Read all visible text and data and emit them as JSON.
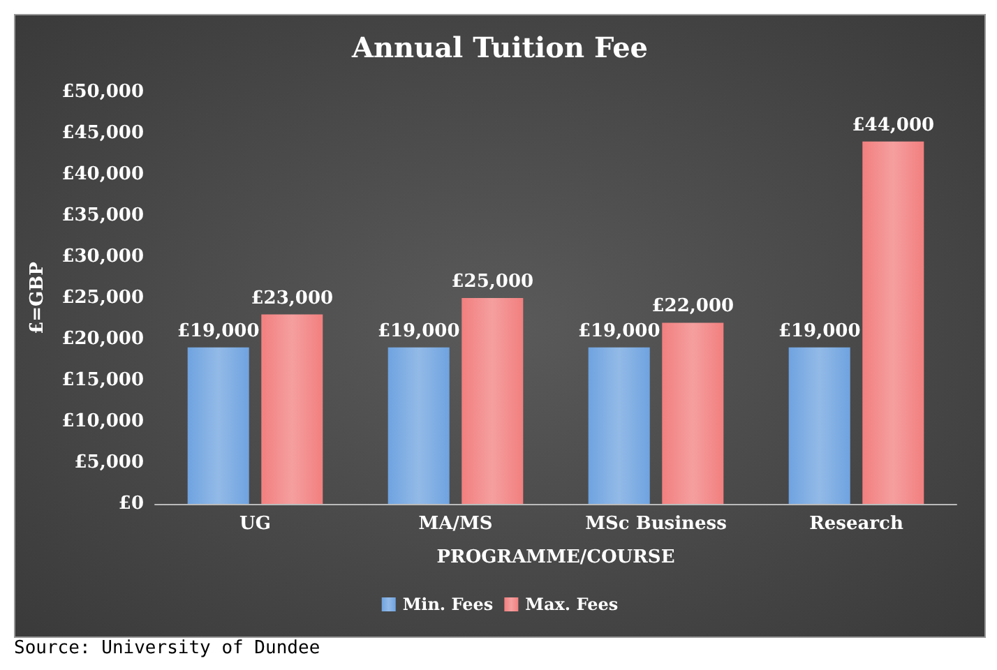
{
  "chart_data": {
    "type": "bar",
    "title": "Annual Tuition Fee",
    "xlabel": "PROGRAMME/COURSE",
    "ylabel": "£=GBP",
    "categories": [
      "UG",
      "MA/MS",
      "MSc Business",
      "Research"
    ],
    "series": [
      {
        "name": "Min. Fees",
        "color": "#6fa3e0",
        "values": [
          19000,
          19000,
          19000,
          19000
        ],
        "value_labels": [
          "£19,000",
          "£19,000",
          "£19,000",
          "£19,000"
        ]
      },
      {
        "name": "Max. Fees",
        "color": "#f27f7f",
        "values": [
          23000,
          25000,
          22000,
          44000
        ],
        "value_labels": [
          "£23,000",
          "£25,000",
          "£22,000",
          "£44,000"
        ]
      }
    ],
    "ylim": [
      0,
      50000
    ],
    "yticks": [
      {
        "value": 0,
        "label": "£0"
      },
      {
        "value": 5000,
        "label": "£5,000"
      },
      {
        "value": 10000,
        "label": "£10,000"
      },
      {
        "value": 15000,
        "label": "£15,000"
      },
      {
        "value": 20000,
        "label": "£20,000"
      },
      {
        "value": 25000,
        "label": "£25,000"
      },
      {
        "value": 30000,
        "label": "£30,000"
      },
      {
        "value": 35000,
        "label": "£35,000"
      },
      {
        "value": 40000,
        "label": "£40,000"
      },
      {
        "value": 45000,
        "label": "£45,000"
      },
      {
        "value": 50000,
        "label": "£50,000"
      }
    ],
    "grid": false,
    "legend": "bottom",
    "annotations": [
      "Source: University of Dundee"
    ]
  }
}
